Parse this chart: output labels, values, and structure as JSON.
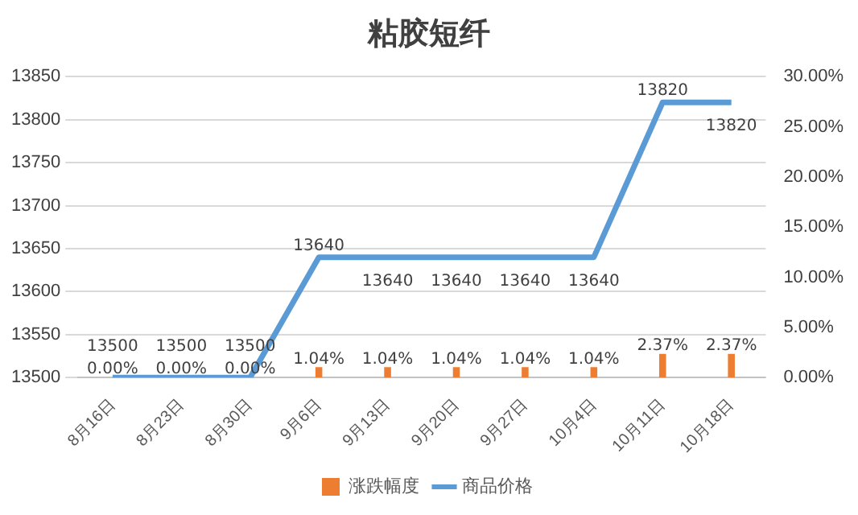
{
  "chart_data": {
    "type": "line",
    "title": "粘胶短纤",
    "categories": [
      "8月16日",
      "8月23日",
      "8月30日",
      "9月6日",
      "9月13日",
      "9月20日",
      "9月27日",
      "10月4日",
      "10月11日",
      "10月18日"
    ],
    "series": [
      {
        "name": "涨跌幅度",
        "type": "bar",
        "axis": "y2",
        "color": "#ed7d31",
        "values": [
          0,
          0,
          0,
          1.04,
          1.04,
          1.04,
          1.04,
          1.04,
          2.37,
          2.37
        ],
        "value_labels": [
          "0.00%",
          "0.00%",
          "0.00%",
          "1.04%",
          "1.04%",
          "1.04%",
          "1.04%",
          "1.04%",
          "2.37%",
          "2.37%"
        ]
      },
      {
        "name": "商品价格",
        "color": "#5b9bd5",
        "values": [
          13500,
          13500,
          13500,
          13640,
          13640,
          13640,
          13640,
          13640,
          13820,
          13820
        ]
      }
    ],
    "ylim": [
      13500,
      13850
    ],
    "yticks": [
      13500,
      13550,
      13600,
      13650,
      13700,
      13750,
      13800,
      13850
    ],
    "y2lim": [
      0,
      30
    ],
    "y2ticks": [
      {
        "value": 0,
        "label": "0.00%"
      },
      {
        "value": 5,
        "label": "5.00%"
      },
      {
        "value": 10,
        "label": "10.00%"
      },
      {
        "value": 15,
        "label": "15.00%"
      },
      {
        "value": 20,
        "label": "20.00%"
      },
      {
        "value": 25,
        "label": "25.00%"
      },
      {
        "value": 30,
        "label": "30.00%"
      }
    ],
    "grid": "y",
    "legend": "bottom",
    "marker": "none",
    "line_style": "solid",
    "data_labels": true
  }
}
